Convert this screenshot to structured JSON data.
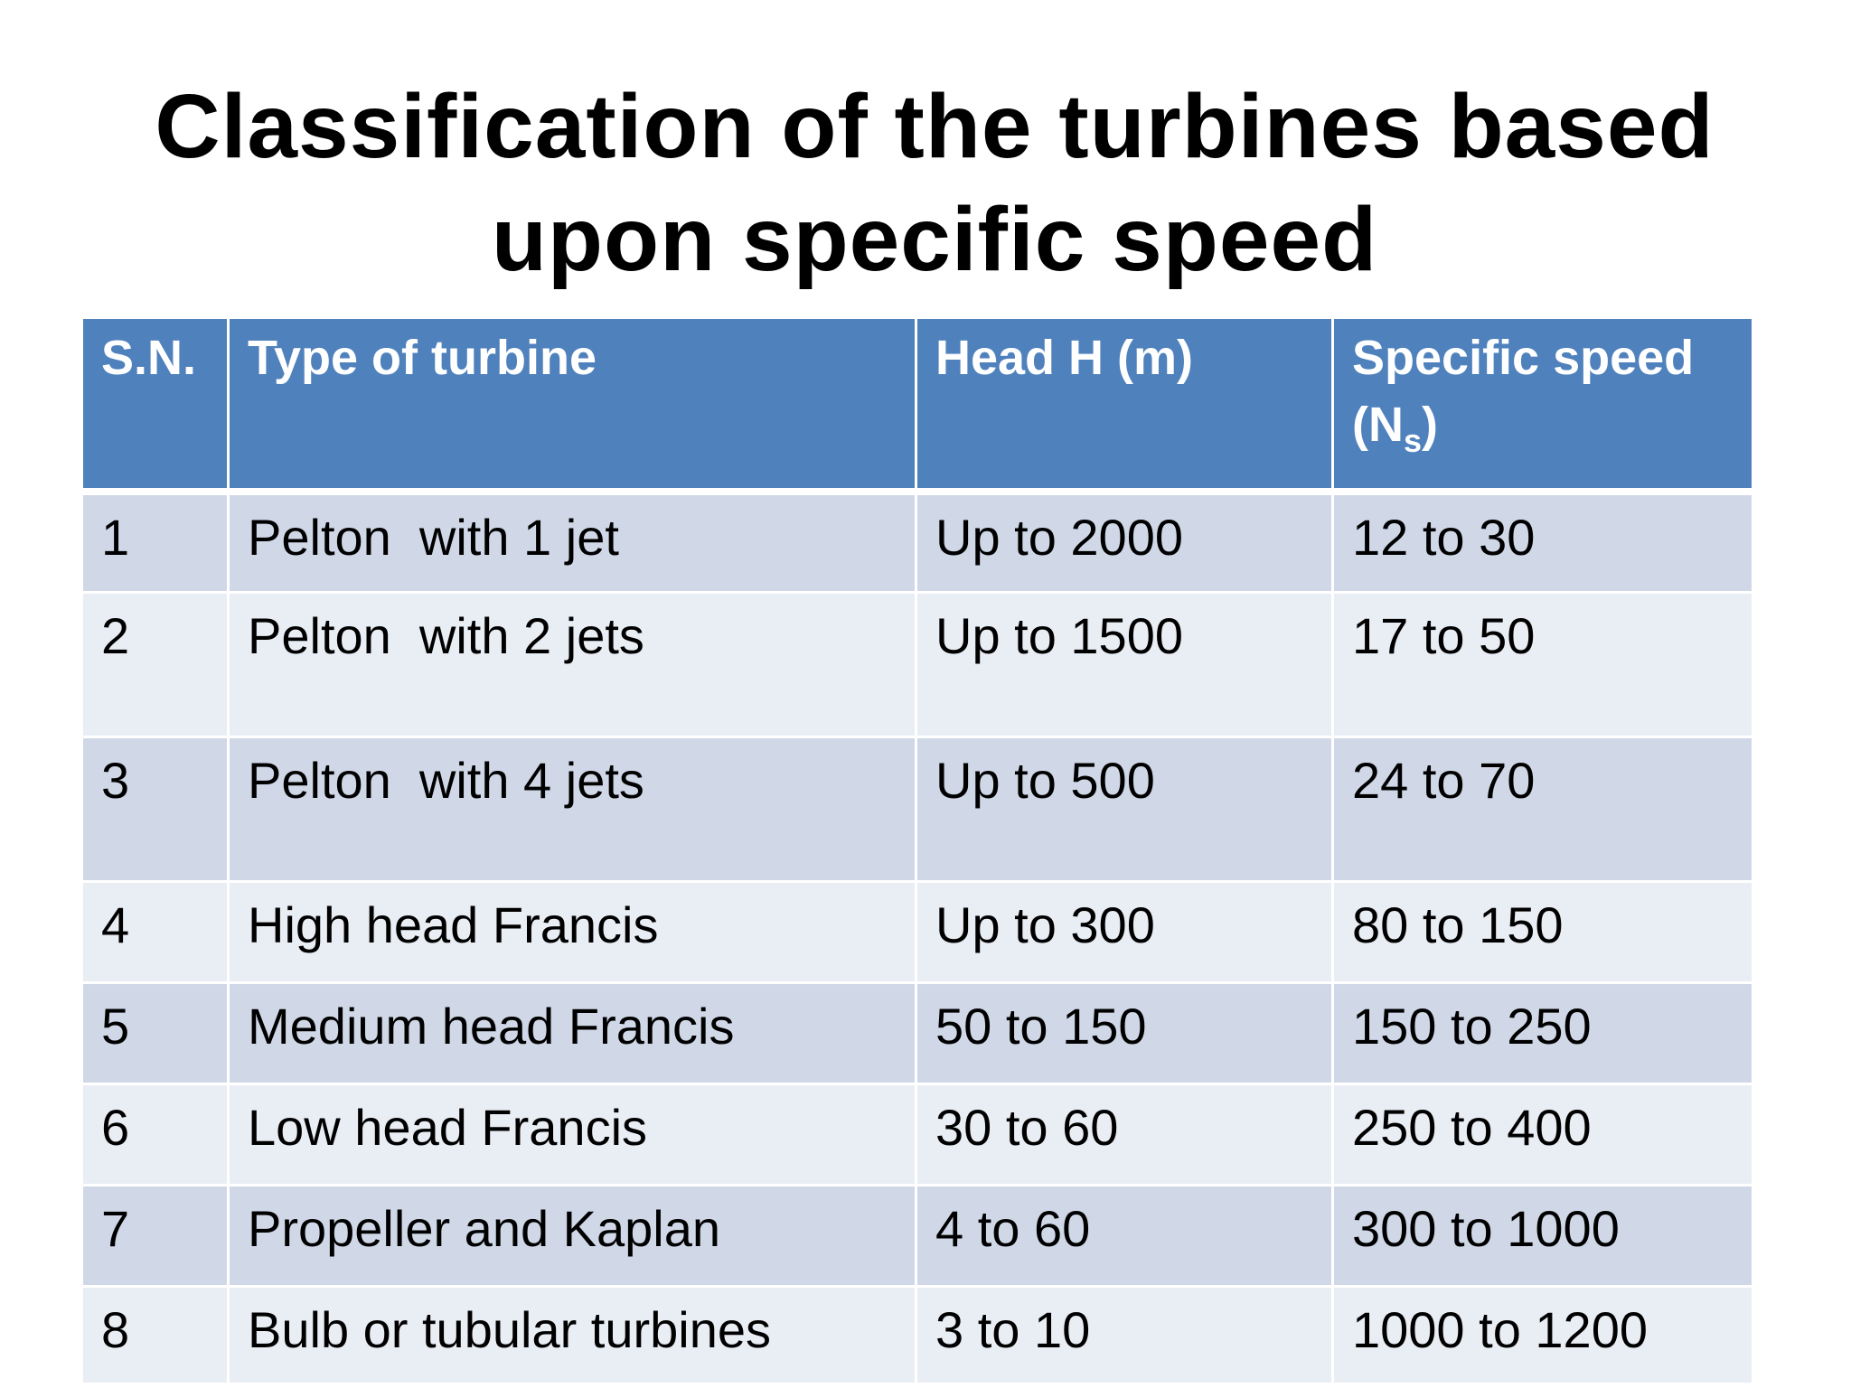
{
  "title": {
    "line1": "Classification of the turbines based",
    "line2": "upon specific speed"
  },
  "table": {
    "headers": {
      "sn": "S.N.",
      "type": "Type of turbine",
      "head": "Head H (m)",
      "speed_main": "Specific speed",
      "speed_open": "(N",
      "speed_sub": "s",
      "speed_close": ")"
    },
    "rows": [
      {
        "sn": "1",
        "type": "Pelton  with 1 jet",
        "head": "Up to 2000",
        "speed": "12 to 30"
      },
      {
        "sn": "2",
        "type": "Pelton  with 2 jets",
        "head": "Up to 1500",
        "speed": "17 to 50"
      },
      {
        "sn": "3",
        "type": "Pelton  with 4 jets",
        "head": "Up to 500",
        "speed": "24 to 70"
      },
      {
        "sn": "4",
        "type": "High head Francis",
        "head": "Up to 300",
        "speed": "80 to 150"
      },
      {
        "sn": "5",
        "type": "Medium head Francis",
        "head": "50 to 150",
        "speed": "150 to 250"
      },
      {
        "sn": "6",
        "type": "Low head Francis",
        "head": "30 to 60",
        "speed": "250 to 400"
      },
      {
        "sn": "7",
        "type": "Propeller and Kaplan",
        "head": "4 to 60",
        "speed": "300 to 1000"
      },
      {
        "sn": "8",
        "type": "Bulb or tubular turbines",
        "head": "3 to 10",
        "speed": "1000 to 1200"
      }
    ]
  },
  "colors": {
    "header_bg": "#4f81bd",
    "row_odd_bg": "#d0d8e8",
    "row_even_bg": "#e9edf4"
  }
}
